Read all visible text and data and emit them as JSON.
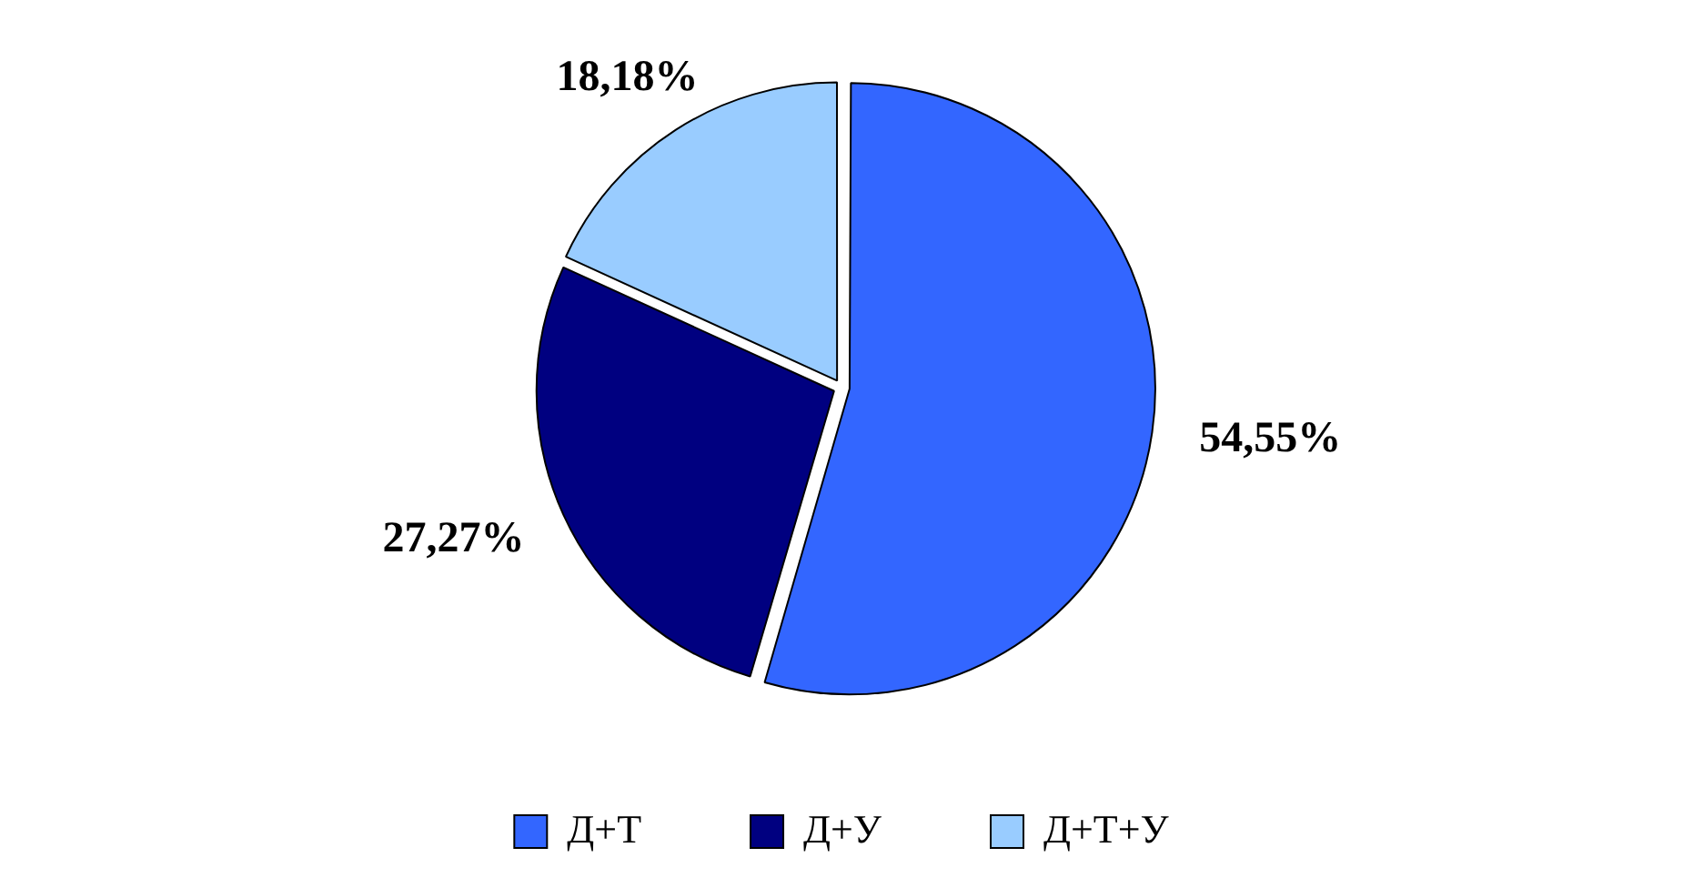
{
  "chart_data": {
    "type": "pie",
    "categories": [
      "Д+Т",
      "Д+У",
      "Д+Т+У"
    ],
    "values": [
      54.55,
      27.27,
      18.18
    ],
    "colors": [
      "#3366ff",
      "#000080",
      "#99ccff"
    ],
    "value_labels": [
      "54,55%",
      "27,27%",
      "18,18%"
    ],
    "legend": "bottom"
  }
}
